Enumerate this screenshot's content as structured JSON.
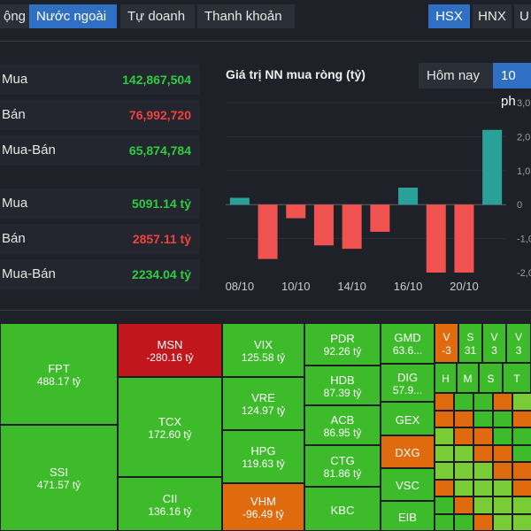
{
  "tabs": [
    "ộng",
    "Nước ngoài",
    "Tự doanh",
    "Thanh khoản"
  ],
  "exchanges": [
    "HSX",
    "HNX",
    "U"
  ],
  "stats": [
    {
      "label": "Mua",
      "value": "142,867,504",
      "color": "green"
    },
    {
      "label": "Bán",
      "value": "76,992,720",
      "color": "red"
    },
    {
      "label": "Mua-Bán",
      "value": "65,874,784",
      "color": "green"
    },
    {
      "label": "Mua",
      "value": "5091.14 tỷ",
      "color": "green"
    },
    {
      "label": "Bán",
      "value": "2857.11 tỷ",
      "color": "red"
    },
    {
      "label": "Mua-Bán",
      "value": "2234.04 tỷ",
      "color": "green"
    }
  ],
  "chart_title": "Giá trị NN mua ròng (tỷ)",
  "range_buttons": [
    "Hôm nay",
    "10 ph"
  ],
  "chart_data": {
    "type": "bar",
    "x_tick_labels": [
      "08/10",
      "10/10",
      "14/10",
      "16/10",
      "20/10"
    ],
    "y_tick_labels": [
      "3,0",
      "2,0",
      "1,0",
      "0",
      "-1,0",
      "-2,0"
    ],
    "values": [
      0.2,
      -1.6,
      -0.4,
      -1.2,
      -1.3,
      -0.8,
      0.5,
      -2.0,
      -2.0,
      2.2
    ],
    "ylim": [
      -2,
      3
    ],
    "colors": {
      "positive": "#2aa198",
      "negative": "#f0524f"
    }
  },
  "heatmap": {
    "colors": {
      "green": "#3dbb2b",
      "red": "#c0161c",
      "orange": "#e06a0e",
      "lightgreen": "#7acc36"
    },
    "cells": [
      {
        "ticker": "FPT",
        "value": "488.17 tỷ",
        "color": "green"
      },
      {
        "ticker": "SSI",
        "value": "471.57 tỷ",
        "color": "green"
      },
      {
        "ticker": "MSN",
        "value": "-280.16 tỷ",
        "color": "red"
      },
      {
        "ticker": "TCX",
        "value": "172.60 tỷ",
        "color": "green"
      },
      {
        "ticker": "CII",
        "value": "136.16 tỷ",
        "color": "green"
      },
      {
        "ticker": "VIX",
        "value": "125.58 tỷ",
        "color": "green"
      },
      {
        "ticker": "VRE",
        "value": "124.97 tỷ",
        "color": "green"
      },
      {
        "ticker": "HPG",
        "value": "119.63 tỷ",
        "color": "green"
      },
      {
        "ticker": "VHM",
        "value": "-96.49 tỷ",
        "color": "orange"
      },
      {
        "ticker": "PDR",
        "value": "92.26 tỷ",
        "color": "green"
      },
      {
        "ticker": "HDB",
        "value": "87.39 tỷ",
        "color": "green"
      },
      {
        "ticker": "ACB",
        "value": "86.95 tỷ",
        "color": "green"
      },
      {
        "ticker": "CTG",
        "value": "81.86 tỷ",
        "color": "green"
      },
      {
        "ticker": "KBC",
        "value": "",
        "color": "green"
      },
      {
        "ticker": "GMD",
        "value": "63.6...",
        "color": "green"
      },
      {
        "ticker": "DIG",
        "value": "57.9...",
        "color": "green"
      },
      {
        "ticker": "GEX",
        "value": "",
        "color": "green"
      },
      {
        "ticker": "DXG",
        "value": "",
        "color": "orange"
      },
      {
        "ticker": "VSC",
        "value": "",
        "color": "green"
      },
      {
        "ticker": "EIB",
        "value": "",
        "color": "green"
      },
      {
        "ticker": "V",
        "value": "-3",
        "color": "orange"
      },
      {
        "ticker": "S",
        "value": "31",
        "color": "green"
      },
      {
        "ticker": "V",
        "value": "3",
        "color": "green"
      },
      {
        "ticker": "V",
        "value": "3",
        "color": "green"
      },
      {
        "ticker": "H",
        "value": "",
        "color": "green"
      },
      {
        "ticker": "M",
        "value": "",
        "color": "green"
      },
      {
        "ticker": "S",
        "value": "",
        "color": "green"
      },
      {
        "ticker": "T",
        "value": "",
        "color": "green"
      }
    ]
  }
}
